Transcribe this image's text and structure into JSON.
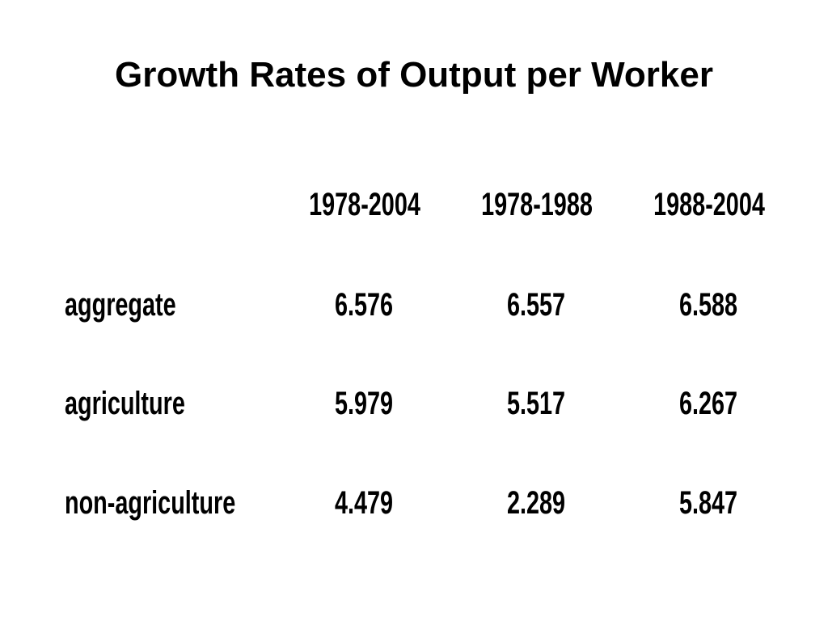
{
  "slide": {
    "title": "Growth Rates of Output per Worker"
  },
  "table": {
    "columns": [
      "1978-2004",
      "1978-1988",
      "1988-2004"
    ],
    "rows": [
      {
        "label": "aggregate",
        "values": [
          "6.576",
          "6.557",
          "6.588"
        ]
      },
      {
        "label": "agriculture",
        "values": [
          "5.979",
          "5.517",
          "6.267"
        ]
      },
      {
        "label": "non-agriculture",
        "values": [
          "4.479",
          "2.289",
          "5.847"
        ]
      }
    ]
  }
}
